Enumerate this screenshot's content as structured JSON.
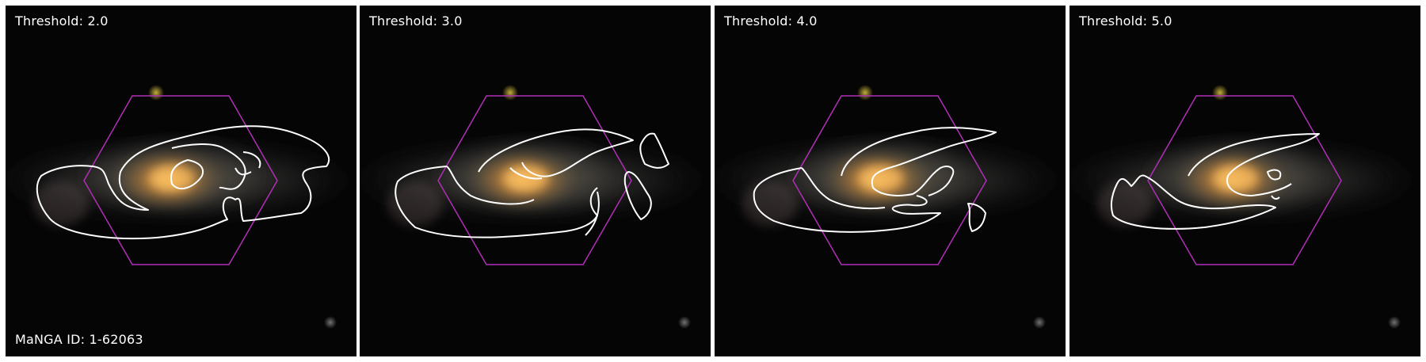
{
  "panels": [
    {
      "label_prefix": "Threshold: ",
      "threshold": "2.0"
    },
    {
      "label_prefix": "Threshold: ",
      "threshold": "3.0"
    },
    {
      "label_prefix": "Threshold: ",
      "threshold": "4.0"
    },
    {
      "label_prefix": "Threshold: ",
      "threshold": "5.0"
    }
  ],
  "footer": {
    "prefix": "MaNGA ID: ",
    "id": "1-62063"
  },
  "colors": {
    "contour": "#ffffff",
    "hexagon": "#b02fb6",
    "core": "#f2a640",
    "background": "#000000"
  }
}
